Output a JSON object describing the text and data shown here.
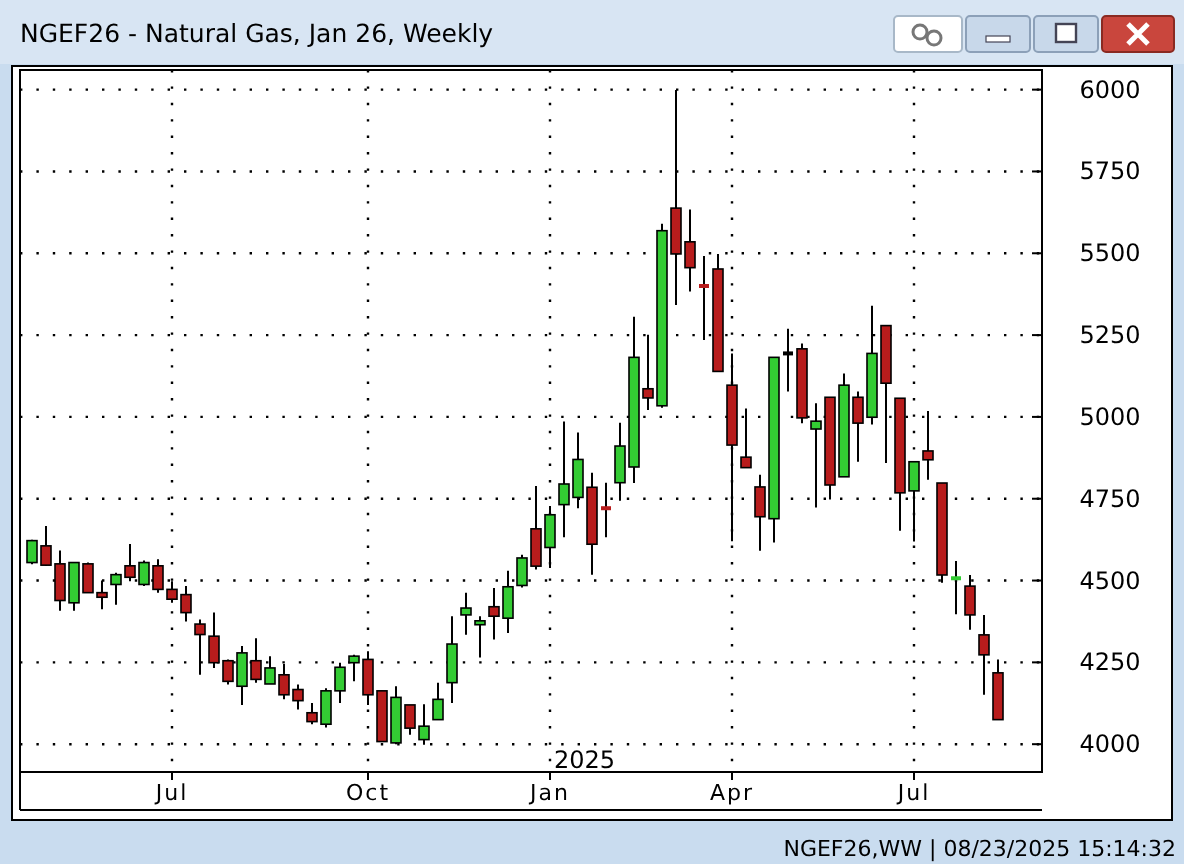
{
  "chart_data": {
    "type": "candlestick",
    "title": "NGEF26 - Natural Gas, Jan 26, Weekly",
    "annotations": [
      "2025",
      "NGEF26,WW | 08/23/2025 15:14:32"
    ],
    "x": [
      "2024-04-22",
      "2024-04-29",
      "2024-05-06",
      "2024-05-13",
      "2024-05-20",
      "2024-05-27",
      "2024-06-03",
      "2024-06-10",
      "2024-06-17",
      "2024-06-24",
      "2024-07-01",
      "2024-07-08",
      "2024-07-15",
      "2024-07-22",
      "2024-07-29",
      "2024-08-05",
      "2024-08-12",
      "2024-08-19",
      "2024-08-26",
      "2024-09-02",
      "2024-09-09",
      "2024-09-16",
      "2024-09-23",
      "2024-09-30",
      "2024-10-07",
      "2024-10-14",
      "2024-10-21",
      "2024-10-28",
      "2024-11-04",
      "2024-11-11",
      "2024-11-18",
      "2024-11-25",
      "2024-12-02",
      "2024-12-09",
      "2024-12-16",
      "2024-12-23",
      "2024-12-30",
      "2025-01-06",
      "2025-01-13",
      "2025-01-20",
      "2025-01-27",
      "2025-02-03",
      "2025-02-10",
      "2025-02-17",
      "2025-02-24",
      "2025-03-03",
      "2025-03-10",
      "2025-03-17",
      "2025-03-24",
      "2025-03-31",
      "2025-04-07",
      "2025-04-14",
      "2025-04-21",
      "2025-04-28",
      "2025-05-05",
      "2025-05-12",
      "2025-05-19",
      "2025-05-26",
      "2025-06-02",
      "2025-06-09",
      "2025-06-16",
      "2025-06-23",
      "2025-06-30",
      "2025-07-07",
      "2025-07-14",
      "2025-07-21",
      "2025-07-28",
      "2025-08-04",
      "2025-08-11",
      "2025-08-18"
    ],
    "ohlc": [
      [
        4555,
        4625,
        4550,
        4622
      ],
      [
        4606,
        4667,
        4545,
        4547
      ],
      [
        4551,
        4592,
        4408,
        4439
      ],
      [
        4432,
        4555,
        4408,
        4555
      ],
      [
        4551,
        4555,
        4463,
        4463
      ],
      [
        4463,
        4500,
        4412,
        4449
      ],
      [
        4488,
        4524,
        4426,
        4518
      ],
      [
        4545,
        4612,
        4498,
        4510
      ],
      [
        4488,
        4561,
        4483,
        4555
      ],
      [
        4545,
        4565,
        4463,
        4473
      ],
      [
        4473,
        4498,
        4432,
        4443
      ],
      [
        4457,
        4483,
        4375,
        4402
      ],
      [
        4367,
        4381,
        4212,
        4335
      ],
      [
        4330,
        4402,
        4233,
        4249
      ],
      [
        4255,
        4259,
        4182,
        4192
      ],
      [
        4177,
        4300,
        4120,
        4279
      ],
      [
        4255,
        4324,
        4188,
        4198
      ],
      [
        4184,
        4269,
        4184,
        4233
      ],
      [
        4212,
        4245,
        4137,
        4151
      ],
      [
        4167,
        4182,
        4106,
        4133
      ],
      [
        4096,
        4126,
        4061,
        4069
      ],
      [
        4061,
        4171,
        4051,
        4163
      ],
      [
        4163,
        4249,
        4126,
        4235
      ],
      [
        4249,
        4273,
        4192,
        4269
      ],
      [
        4259,
        4284,
        4120,
        4151
      ],
      [
        4163,
        4163,
        4008,
        4008
      ],
      [
        4004,
        4177,
        4000,
        4143
      ],
      [
        4120,
        4120,
        4029,
        4049
      ],
      [
        4014,
        4122,
        3998,
        4055
      ],
      [
        4075,
        4188,
        4075,
        4137
      ],
      [
        4188,
        4391,
        4126,
        4306
      ],
      [
        4395,
        4463,
        4334,
        4416
      ],
      [
        4365,
        4391,
        4265,
        4377
      ],
      [
        4420,
        4477,
        4320,
        4391
      ],
      [
        4385,
        4530,
        4340,
        4481
      ],
      [
        4485,
        4579,
        4479,
        4569
      ],
      [
        4658,
        4789,
        4534,
        4544
      ],
      [
        4601,
        4728,
        4538,
        4701
      ],
      [
        4732,
        4986,
        4632,
        4795
      ],
      [
        4754,
        4952,
        4721,
        4870
      ],
      [
        4785,
        4829,
        4518,
        4611
      ],
      [
        4721,
        4799,
        4632,
        4716
      ],
      [
        4799,
        4982,
        4744,
        4911
      ],
      [
        4847,
        5306,
        4798,
        5182
      ],
      [
        5086,
        5251,
        5021,
        5058
      ],
      [
        5034,
        5590,
        5028,
        5569
      ],
      [
        5638,
        5999,
        5342,
        5498
      ],
      [
        5535,
        5634,
        5383,
        5456
      ],
      [
        5400,
        5492,
        5235,
        5395
      ],
      [
        5452,
        5498,
        5139,
        5139
      ],
      [
        5097,
        5194,
        4620,
        4914
      ],
      [
        4877,
        5026,
        4845,
        4845
      ],
      [
        4786,
        4823,
        4591,
        4695
      ],
      [
        4689,
        5182,
        4616,
        5182
      ],
      [
        5194,
        5269,
        5078,
        5194
      ],
      [
        5208,
        5224,
        4981,
        4997
      ],
      [
        4963,
        5042,
        4723,
        4987
      ],
      [
        5060,
        5060,
        4748,
        4792
      ],
      [
        4817,
        5133,
        4817,
        5097
      ],
      [
        5060,
        5078,
        4863,
        4981
      ],
      [
        4999,
        5340,
        4977,
        5194
      ],
      [
        5279,
        5279,
        4859,
        5103
      ],
      [
        5057,
        5057,
        4652,
        4768
      ],
      [
        4774,
        4863,
        4619,
        4863
      ],
      [
        4896,
        5018,
        4808,
        4869
      ],
      [
        4798,
        4798,
        4493,
        4517
      ],
      [
        4505,
        4560,
        4397,
        4507
      ],
      [
        4483,
        4517,
        4350,
        4395
      ],
      [
        4334,
        4395,
        4151,
        4273
      ],
      [
        4218,
        4259,
        4075,
        4075
      ]
    ],
    "colors": [
      "#33cc33",
      "#b81c1c",
      "#b81c1c",
      "#33cc33",
      "#b81c1c",
      "#b81c1c",
      "#33cc33",
      "#b81c1c",
      "#33cc33",
      "#b81c1c",
      "#b81c1c",
      "#b81c1c",
      "#b81c1c",
      "#b81c1c",
      "#b81c1c",
      "#33cc33",
      "#b81c1c",
      "#33cc33",
      "#b81c1c",
      "#b81c1c",
      "#b81c1c",
      "#33cc33",
      "#33cc33",
      "#33cc33",
      "#b81c1c",
      "#b81c1c",
      "#33cc33",
      "#b81c1c",
      "#33cc33",
      "#33cc33",
      "#33cc33",
      "#33cc33",
      "#33cc33",
      "#b81c1c",
      "#33cc33",
      "#33cc33",
      "#b81c1c",
      "#33cc33",
      "#33cc33",
      "#33cc33",
      "#b81c1c",
      "#b81c1c",
      "#33cc33",
      "#33cc33",
      "#b81c1c",
      "#33cc33",
      "#b81c1c",
      "#b81c1c",
      "#b81c1c",
      "#b81c1c",
      "#b81c1c",
      "#b81c1c",
      "#b81c1c",
      "#33cc33",
      "#000000",
      "#b81c1c",
      "#33cc33",
      "#b81c1c",
      "#33cc33",
      "#b81c1c",
      "#33cc33",
      "#b81c1c",
      "#b81c1c",
      "#33cc33",
      "#b81c1c",
      "#b81c1c",
      "#33cc33",
      "#b81c1c",
      "#b81c1c",
      "#b81c1c"
    ],
    "xlim": [
      "2024-04-16",
      "2025-09-09"
    ],
    "xticks": [
      {
        "value": "2024-07-01",
        "label": "Jul"
      },
      {
        "value": "2024-10-07",
        "label": "Oct"
      },
      {
        "value": "2025-01-06",
        "label": "Jan"
      },
      {
        "value": "2025-04-07",
        "label": "Apr"
      },
      {
        "value": "2025-07-07",
        "label": "Jul"
      }
    ],
    "ylim": [
      3915,
      6060
    ],
    "yticks": [
      4000,
      4250,
      4500,
      4750,
      5000,
      5250,
      5500,
      5750,
      6000
    ],
    "grid": true
  }
}
